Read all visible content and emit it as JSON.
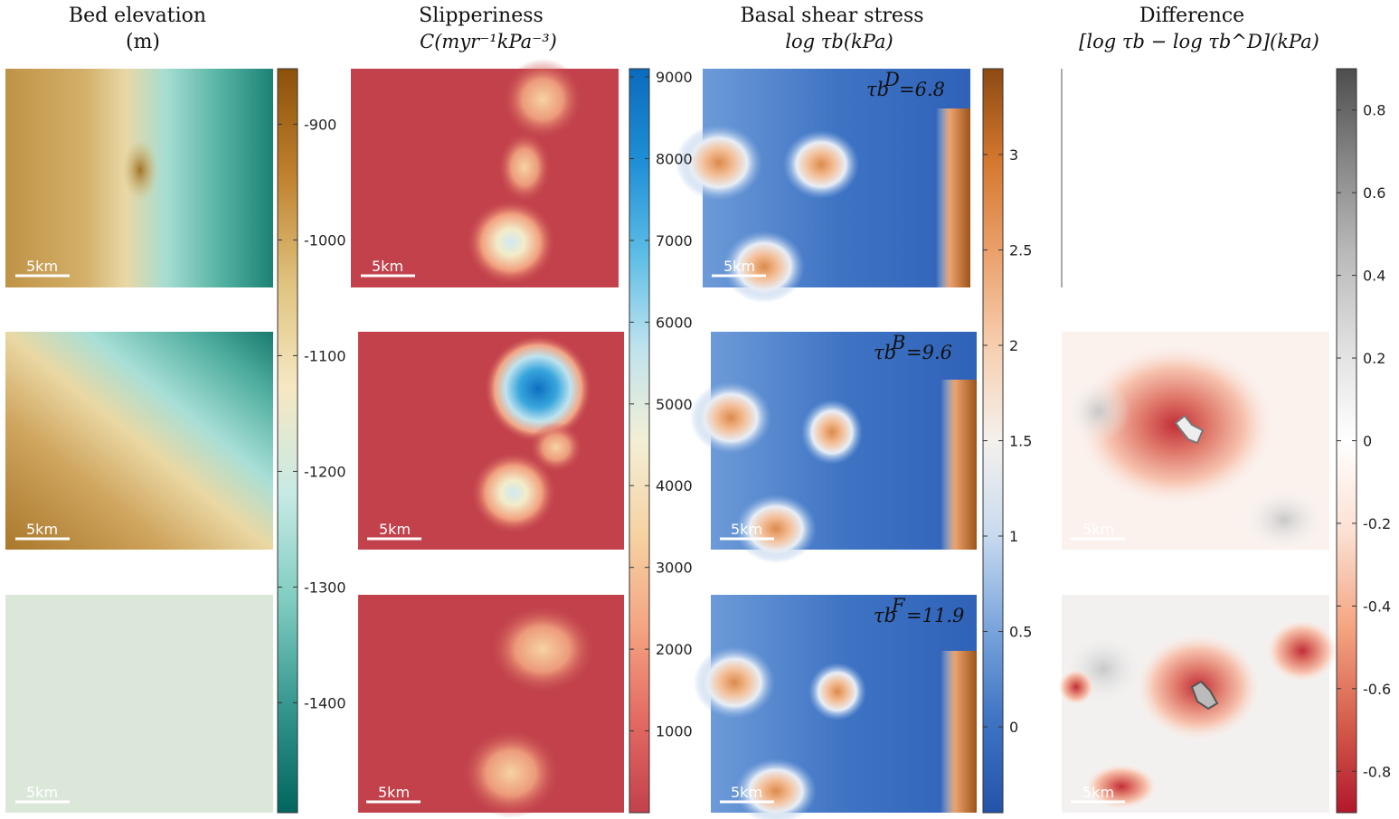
{
  "chart_data": {
    "type": "heatmap",
    "layout": "3 rows x 4 columns of map panels, one colorbar per column",
    "columns": [
      {
        "title_line1": "Bed elevation",
        "title_line2": "(m)",
        "colormap": "BrBG",
        "colormap_stops": [
          "#8c510a",
          "#bf812d",
          "#dfc27d",
          "#f6e8c3",
          "#c7eae5",
          "#80cdc1",
          "#35978f",
          "#01665e"
        ],
        "clim": [
          -1495,
          -852
        ],
        "colorbar_ticks": [
          "-900",
          "-1000",
          "-1100",
          "-1200",
          "-1300",
          "-1400"
        ],
        "colorbar_tick_values": [
          -900,
          -1000,
          -1100,
          -1200,
          -1300,
          -1400
        ]
      },
      {
        "title_line1": "Slipperiness",
        "title_line2": "C(myr⁻¹kPa⁻³)",
        "colormap": "RdYlBu",
        "colormap_stops": [
          "#c2414b",
          "#e46a62",
          "#f4a582",
          "#f6d3a3",
          "#f3efd5",
          "#bfe3ee",
          "#5cbde6",
          "#1e8fd6",
          "#0b6bbd"
        ],
        "clim": [
          0,
          9100
        ],
        "colorbar_ticks": [
          "9000",
          "8000",
          "7000",
          "6000",
          "5000",
          "4000",
          "3000",
          "2000",
          "1000"
        ],
        "colorbar_tick_values": [
          9000,
          8000,
          7000,
          6000,
          5000,
          4000,
          3000,
          2000,
          1000
        ]
      },
      {
        "title_line1": "Basal shear stress",
        "title_line2": "log τb(kPa)",
        "colormap": "blue-white-orange",
        "colormap_stops": [
          "#2353a8",
          "#3f74c4",
          "#7ba6dc",
          "#c9dbef",
          "#f4f1ed",
          "#f6cfb0",
          "#eba26d",
          "#d5782f",
          "#8c4a12"
        ],
        "clim": [
          -0.45,
          3.45
        ],
        "colorbar_ticks": [
          "3",
          "2.5",
          "2",
          "1.5",
          "1",
          "0.5",
          "0"
        ],
        "colorbar_tick_values": [
          3,
          2.5,
          2,
          1.5,
          1,
          0.5,
          0
        ],
        "panel_stats": [
          {
            "label": "τb",
            "superscript": "D",
            "value": "=6.8"
          },
          {
            "label": "τb",
            "superscript": "B",
            "value": "=9.6"
          },
          {
            "label": "τb",
            "superscript": "F",
            "value": "=11.9"
          }
        ]
      },
      {
        "title_line1": "Difference",
        "title_line2": "[log τb − log τb^D](kPa)",
        "colormap": "red-white-gray",
        "colormap_stops": [
          "#b2182b",
          "#d6604d",
          "#f4a582",
          "#fbe0d2",
          "#ffffff",
          "#e0e0e0",
          "#bababa",
          "#878787",
          "#4d4d4d"
        ],
        "clim": [
          -0.9,
          0.9
        ],
        "colorbar_ticks": [
          "0.8",
          "0.6",
          "0.4",
          "0.2",
          "0",
          "-0.2",
          "-0.4",
          "-0.6",
          "-0.8"
        ],
        "colorbar_tick_values": [
          0.8,
          0.6,
          0.4,
          0.2,
          0,
          -0.2,
          -0.4,
          -0.6,
          -0.8
        ]
      }
    ],
    "scale_bar_label": "5km",
    "colors": {
      "bed_base_row1": "#c9a35e",
      "bed_base_row3": "#dbe8d9",
      "slip_base": "#c2414b",
      "tau_base": "#4a7fd0",
      "diff_base": "#fbf4f1"
    }
  }
}
